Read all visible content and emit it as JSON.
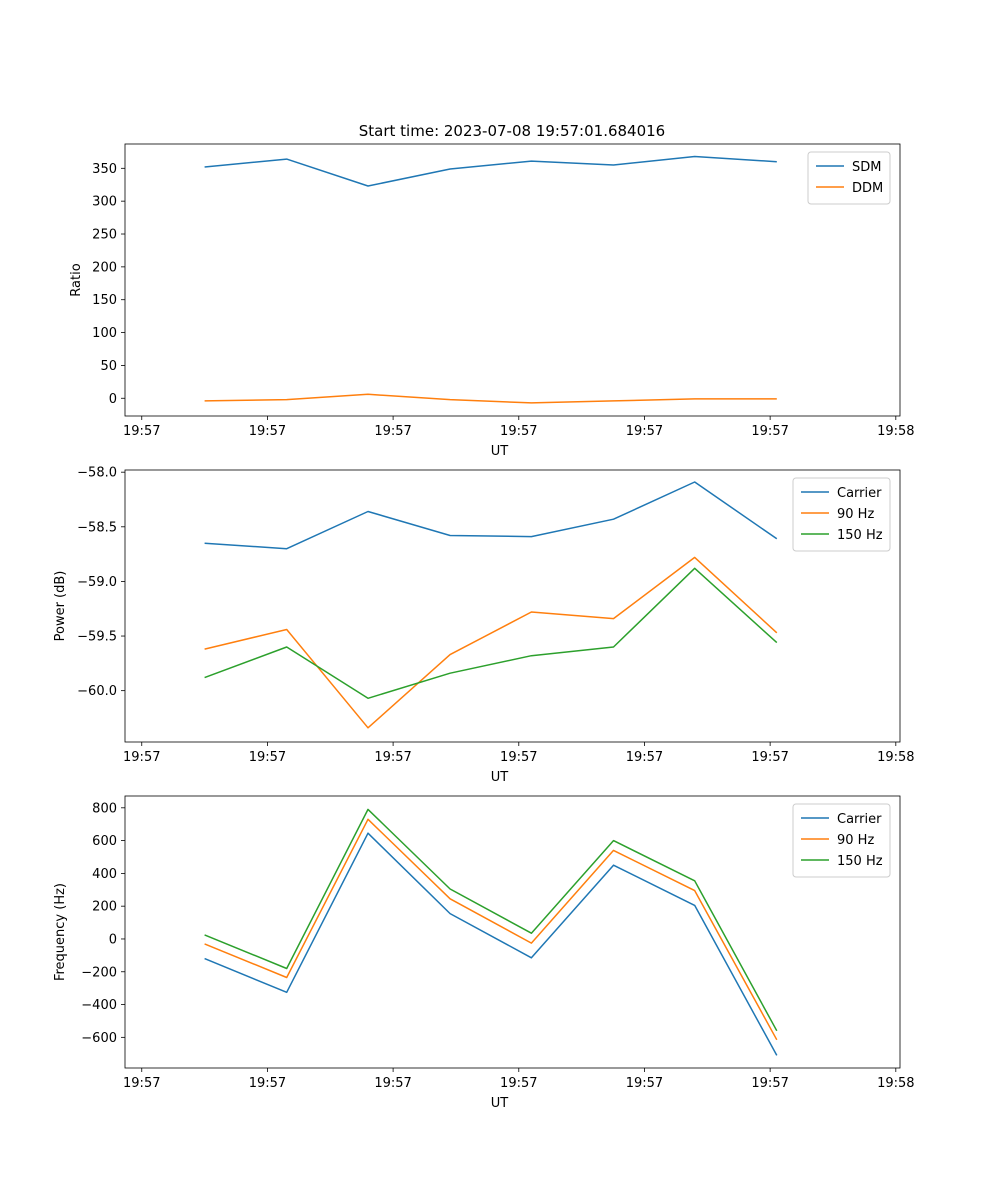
{
  "figure_title": "Start time: 2023-07-08 19:57:01.684016",
  "colors": {
    "c0": "#1f77b4",
    "c1": "#ff7f0e",
    "c2": "#2ca02c"
  },
  "chart_data": [
    {
      "type": "line",
      "title": "Start time: 2023-07-08 19:57:01.684016",
      "xlabel": "UT",
      "ylabel": "Ratio",
      "xlim": [
        -0.2,
        9.05
      ],
      "ylim": [
        -27,
        387
      ],
      "x_ticks": [
        0,
        1.5,
        3,
        4.5,
        6,
        7.5,
        9
      ],
      "x_tick_labels": [
        "19:57",
        "19:57",
        "19:57",
        "19:57",
        "19:57",
        "19:57",
        "19:58"
      ],
      "y_ticks": [
        0,
        50,
        100,
        150,
        200,
        250,
        300,
        350
      ],
      "y_tick_labels": [
        "0",
        "50",
        "100",
        "150",
        "200",
        "250",
        "300",
        "350"
      ],
      "x": [
        0.75,
        1.73,
        2.7,
        3.68,
        4.65,
        5.63,
        6.6,
        7.58
      ],
      "series": [
        {
          "name": "SDM",
          "color_key": "c0",
          "values": [
            352,
            364,
            323,
            349,
            361,
            355,
            368,
            360
          ]
        },
        {
          "name": "DDM",
          "color_key": "c1",
          "values": [
            -4,
            -2,
            6,
            -2,
            -7,
            -4,
            -1,
            -1
          ]
        }
      ],
      "legend_loc": "upper right"
    },
    {
      "type": "line",
      "xlabel": "UT",
      "ylabel": "Power (dB)",
      "xlim": [
        -0.2,
        9.05
      ],
      "ylim": [
        -60.47,
        -57.98
      ],
      "x_ticks": [
        0,
        1.5,
        3,
        4.5,
        6,
        7.5,
        9
      ],
      "x_tick_labels": [
        "19:57",
        "19:57",
        "19:57",
        "19:57",
        "19:57",
        "19:57",
        "19:58"
      ],
      "y_ticks": [
        -60.0,
        -59.5,
        -59.0,
        -58.5,
        -58.0
      ],
      "y_tick_labels": [
        "−60.0",
        "−59.5",
        "−59.0",
        "−58.5",
        "−58.0"
      ],
      "x": [
        0.75,
        1.73,
        2.7,
        3.68,
        4.65,
        5.63,
        6.6,
        7.58
      ],
      "series": [
        {
          "name": "Carrier",
          "color_key": "c0",
          "values": [
            -58.65,
            -58.7,
            -58.36,
            -58.58,
            -58.59,
            -58.43,
            -58.09,
            -58.61
          ]
        },
        {
          "name": "90 Hz",
          "color_key": "c1",
          "values": [
            -59.62,
            -59.44,
            -60.34,
            -59.67,
            -59.28,
            -59.34,
            -58.78,
            -59.47
          ]
        },
        {
          "name": "150 Hz",
          "color_key": "c2",
          "values": [
            -59.88,
            -59.6,
            -60.07,
            -59.84,
            -59.68,
            -59.6,
            -58.88,
            -59.56
          ]
        }
      ],
      "legend_loc": "upper right"
    },
    {
      "type": "line",
      "xlabel": "UT",
      "ylabel": "Frequency (Hz)",
      "xlim": [
        -0.2,
        9.05
      ],
      "ylim": [
        -787,
        872
      ],
      "x_ticks": [
        0,
        1.5,
        3,
        4.5,
        6,
        7.5,
        9
      ],
      "x_tick_labels": [
        "19:57",
        "19:57",
        "19:57",
        "19:57",
        "19:57",
        "19:57",
        "19:58"
      ],
      "y_ticks": [
        -600,
        -400,
        -200,
        0,
        200,
        400,
        600,
        800
      ],
      "y_tick_labels": [
        "−600",
        "−400",
        "−200",
        "0",
        "200",
        "400",
        "600",
        "800"
      ],
      "x": [
        0.75,
        1.73,
        2.7,
        3.68,
        4.65,
        5.63,
        6.6,
        7.58
      ],
      "series": [
        {
          "name": "Carrier",
          "color_key": "c0",
          "values": [
            -120,
            -325,
            645,
            155,
            -115,
            450,
            205,
            -710
          ]
        },
        {
          "name": "90 Hz",
          "color_key": "c1",
          "values": [
            -30,
            -235,
            730,
            245,
            -25,
            540,
            295,
            -615
          ]
        },
        {
          "name": "150 Hz",
          "color_key": "c2",
          "values": [
            25,
            -180,
            790,
            305,
            35,
            600,
            355,
            -560
          ]
        }
      ],
      "legend_loc": "upper right"
    }
  ]
}
